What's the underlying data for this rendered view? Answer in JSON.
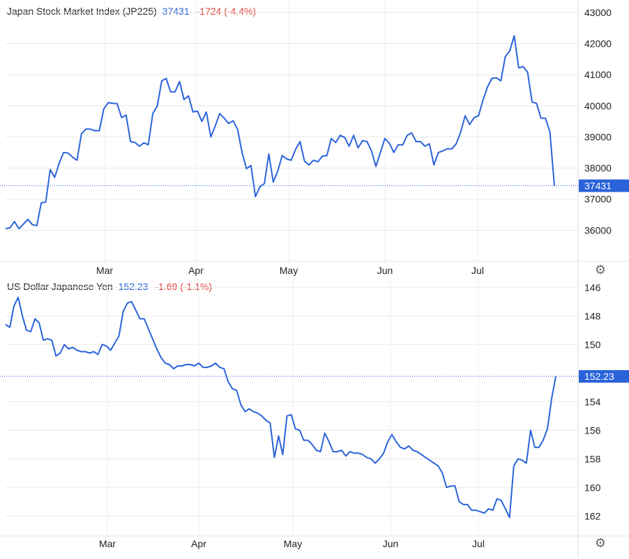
{
  "chart_data": [
    {
      "type": "line",
      "title": "Japan Stock Market Index (JP225)",
      "last_value": "37431",
      "change": "-1724 (-4.4%)",
      "price_tag": "37431",
      "x_ticks": [
        "Mar",
        "Apr",
        "May",
        "Jun",
        "Jul"
      ],
      "y_ticks": [
        "43000",
        "42000",
        "41000",
        "40000",
        "39000",
        "38000",
        "37000",
        "36000"
      ],
      "ylim": [
        35000,
        43400
      ],
      "line_color": "#2a63d9",
      "series": [
        {
          "values": [
            36050,
            36080,
            36280,
            36050,
            36200,
            36350,
            36180,
            36150,
            36880,
            36910,
            37950,
            37700,
            38150,
            38500,
            38480,
            38350,
            38250,
            39100,
            39250,
            39250,
            39200,
            39200,
            39900,
            40100,
            40080,
            40070,
            39620,
            39700,
            38850,
            38820,
            38700,
            38810,
            38750,
            39750,
            39990,
            40800,
            40880,
            40450,
            40450,
            40780,
            40200,
            40320,
            39800,
            39830,
            39500,
            39800,
            39000,
            39350,
            39750,
            39600,
            39430,
            39520,
            39250,
            38500,
            37980,
            38080,
            37080,
            37400,
            37500,
            38450,
            37550,
            37900,
            38400,
            38290,
            38250,
            38600,
            38850,
            38220,
            38100,
            38250,
            38200,
            38380,
            38400,
            38950,
            38820,
            39050,
            38980,
            38700,
            39050,
            38650,
            38880,
            38850,
            38550,
            38050,
            38500,
            38950,
            38800,
            38500,
            38750,
            38740,
            39050,
            39130,
            38850,
            38850,
            38700,
            38780,
            38100,
            38500,
            38550,
            38620,
            38610,
            38780,
            39150,
            39680,
            39400,
            39620,
            39680,
            40180,
            40600,
            40880,
            40900,
            40800,
            41580,
            41760,
            42250,
            41220,
            41260,
            41080,
            40120,
            40080,
            39600,
            39600,
            39160,
            37431
          ]
        }
      ]
    },
    {
      "type": "line",
      "title": "US Dollar Japanese Yen",
      "last_value": "152.23",
      "change": "-1.69 (-1.1%)",
      "price_tag": "152.23",
      "x_ticks": [
        "Mar",
        "Apr",
        "May",
        "Jun",
        "Jul"
      ],
      "y_ticks": [
        "146",
        "148",
        "150",
        "154",
        "156",
        "158",
        "160",
        "162"
      ],
      "ylim": [
        145.4,
        163.4
      ],
      "inverted": true,
      "line_color": "#2a63d9",
      "series": [
        {
          "values": [
            148.6,
            148.8,
            147.3,
            146.7,
            148.0,
            149.0,
            149.1,
            148.2,
            148.5,
            149.7,
            149.6,
            149.7,
            150.8,
            150.6,
            150.0,
            150.3,
            150.2,
            150.4,
            150.5,
            150.5,
            150.6,
            150.5,
            150.7,
            150.0,
            150.1,
            150.4,
            149.9,
            149.4,
            147.7,
            147.1,
            147.0,
            147.6,
            148.2,
            148.2,
            148.9,
            149.6,
            150.3,
            150.9,
            151.3,
            151.4,
            151.7,
            151.5,
            151.5,
            151.4,
            151.4,
            151.5,
            151.3,
            151.6,
            151.6,
            151.5,
            151.3,
            151.6,
            151.7,
            152.6,
            153.1,
            153.2,
            154.2,
            154.7,
            154.5,
            154.7,
            154.8,
            155.0,
            155.3,
            155.5,
            157.9,
            156.4,
            157.7,
            155.0,
            154.9,
            155.9,
            156.0,
            156.7,
            156.7,
            157.0,
            157.4,
            157.5,
            156.2,
            156.8,
            157.5,
            157.5,
            157.4,
            157.8,
            157.5,
            157.6,
            157.6,
            157.7,
            157.9,
            158.0,
            158.3,
            158.0,
            157.6,
            156.8,
            156.3,
            156.8,
            157.2,
            157.3,
            157.1,
            157.4,
            157.5,
            157.7,
            157.9,
            158.1,
            158.3,
            158.5,
            159.0,
            160.0,
            159.9,
            159.9,
            161.0,
            161.2,
            161.2,
            161.6,
            161.6,
            161.7,
            161.8,
            161.5,
            161.6,
            160.8,
            160.9,
            161.5,
            162.1,
            158.5,
            158.0,
            158.1,
            158.3,
            156.0,
            157.2,
            157.2,
            156.7,
            155.9,
            153.8,
            152.23
          ]
        }
      ]
    }
  ],
  "icons": [
    "gear-icon",
    "gear-icon"
  ],
  "colors": {
    "line": "#2a63d9",
    "down": "#e0413a",
    "grid": "#e6e6e6",
    "tag_bg": "#2a63d9"
  }
}
